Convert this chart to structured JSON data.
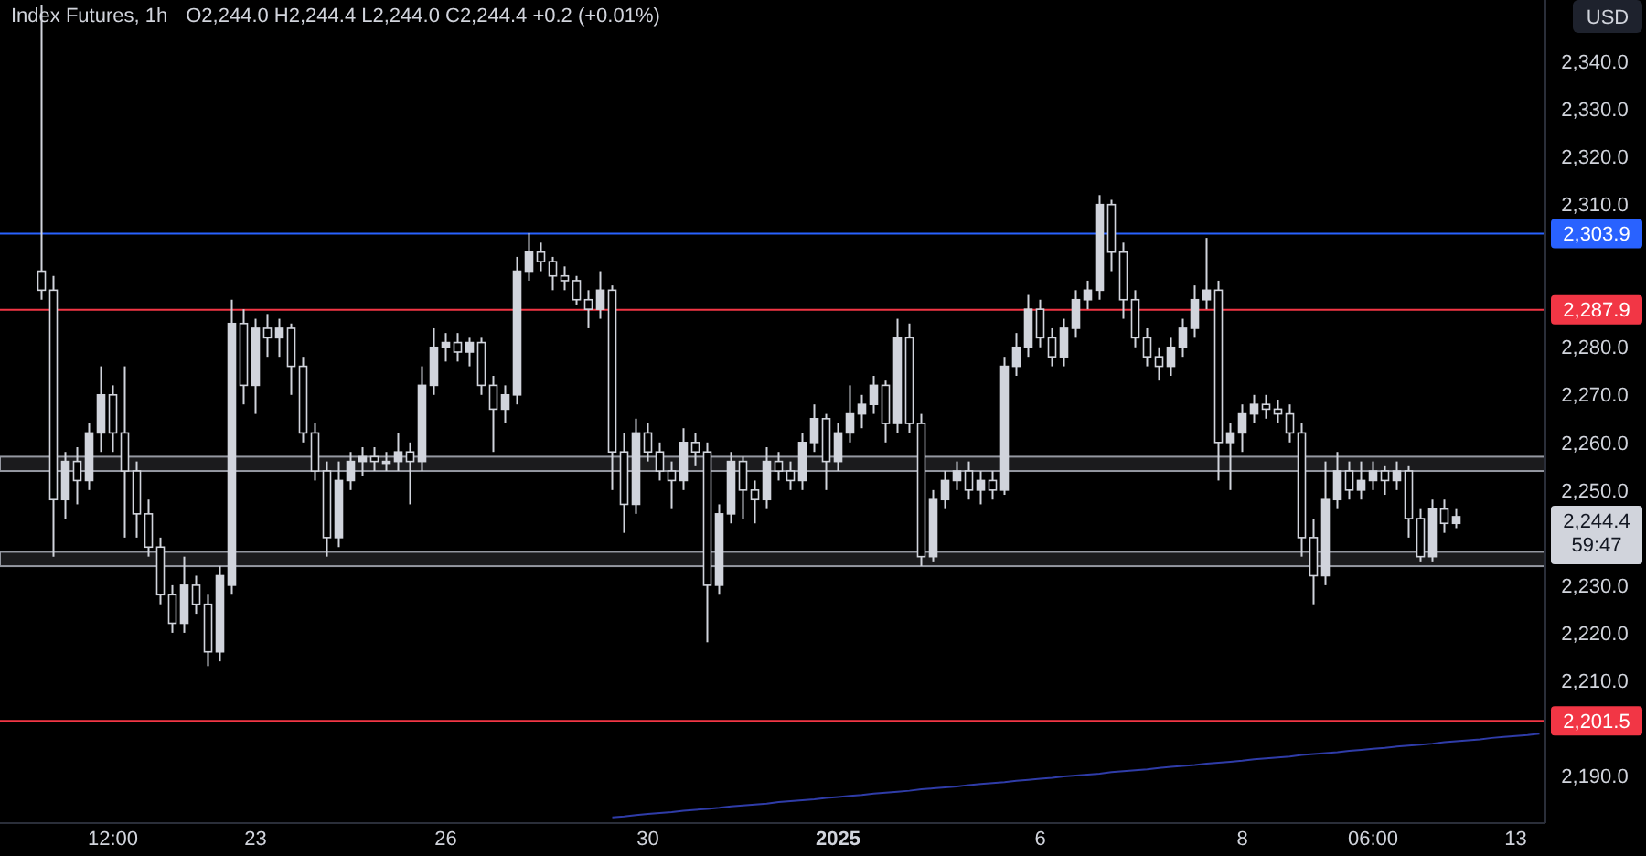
{
  "chart_data": {
    "type": "candlestick",
    "title": "Index Futures, 1h",
    "subtitle": "O2,244.0  H2,244.4  L2,244.0  C2,244.4  +0.2 (+0.01%)",
    "categories": [
      null,
      null,
      null,
      null,
      null,
      null,
      null,
      null,
      null,
      "12:00",
      null,
      null,
      null,
      null,
      null,
      null,
      null,
      null,
      null,
      null,
      null,
      "23",
      null,
      null,
      null,
      null,
      null,
      null,
      null,
      null,
      null,
      null,
      null,
      null,
      null,
      null,
      null,
      "26",
      null,
      null,
      null,
      null,
      null,
      null,
      null,
      null,
      null,
      null,
      null,
      null,
      null,
      null,
      null,
      null,
      "30",
      null,
      null,
      null,
      null,
      null,
      null,
      null,
      null,
      null,
      null,
      null,
      null,
      null,
      null,
      null,
      "2025",
      null,
      null,
      null,
      null,
      null,
      null,
      null,
      null,
      null,
      null,
      null,
      null,
      null,
      null,
      null,
      null,
      "6",
      null,
      null,
      null,
      null,
      null,
      null,
      null,
      null,
      null,
      null,
      null,
      null,
      null,
      null,
      null,
      null,
      "8",
      null,
      null,
      null,
      null,
      null,
      null,
      null,
      null,
      null,
      null,
      "06:00",
      null,
      null,
      null,
      null,
      null,
      null,
      null,
      null,
      null,
      null,
      null,
      "13",
      null,
      null
    ],
    "ylim": [
      2180,
      2353
    ],
    "yticks": [
      {
        "value": 2190,
        "label": "2,190.0"
      },
      {
        "value": 2200,
        "label": null
      },
      {
        "value": 2210,
        "label": "2,210.0"
      },
      {
        "value": 2220,
        "label": "2,220.0"
      },
      {
        "value": 2230,
        "label": "2,230.0"
      },
      {
        "value": 2240,
        "label": null
      },
      {
        "value": 2250,
        "label": "2,250.0"
      },
      {
        "value": 2260,
        "label": "2,260.0"
      },
      {
        "value": 2270,
        "label": "2,270.0"
      },
      {
        "value": 2280,
        "label": "2,280.0"
      },
      {
        "value": 2290,
        "label": null
      },
      {
        "value": 2300,
        "label": null
      },
      {
        "value": 2310,
        "label": "2,310.0"
      },
      {
        "value": 2320,
        "label": "2,320.0"
      },
      {
        "value": 2330,
        "label": "2,330.0"
      },
      {
        "value": 2340,
        "label": "2,340.0"
      }
    ],
    "series": [
      {
        "color": "#d1d4dc",
        "ohlc": [
          null,
          null,
          null,
          [
            2296,
            2352,
            2290,
            2292
          ],
          [
            2292,
            2295,
            2236,
            2248
          ],
          [
            2248,
            2258,
            2244,
            2256
          ],
          [
            2256,
            2259,
            2247,
            2252
          ],
          [
            2252,
            2264,
            2250,
            2262
          ],
          [
            2262,
            2276,
            2258,
            2270
          ],
          [
            2270,
            2272,
            2258,
            2262
          ],
          [
            2262,
            2276,
            2240,
            2254
          ],
          [
            2254,
            2256,
            2240,
            2245
          ],
          [
            2245,
            2248,
            2236,
            2238
          ],
          [
            2238,
            2240,
            2226,
            2228
          ],
          [
            2228,
            2230,
            2220,
            2222
          ],
          [
            2222,
            2236,
            2220,
            2230
          ],
          [
            2230,
            2232,
            2224,
            2226
          ],
          [
            2226,
            2228,
            2213,
            2216
          ],
          [
            2216,
            2234,
            2214,
            2232
          ],
          [
            2230,
            2290,
            2228,
            2285
          ],
          [
            2285,
            2288,
            2268,
            2272
          ],
          [
            2272,
            2286,
            2266,
            2284
          ],
          [
            2284,
            2287,
            2278,
            2282
          ],
          [
            2282,
            2286,
            2278,
            2284
          ],
          [
            2284,
            2285,
            2270,
            2276
          ],
          [
            2276,
            2278,
            2260,
            2262
          ],
          [
            2262,
            2264,
            2252,
            2254
          ],
          [
            2254,
            2256,
            2236,
            2240
          ],
          [
            2240,
            2256,
            2238,
            2252
          ],
          [
            2252,
            2258,
            2250,
            2256
          ],
          [
            2256,
            2259,
            2253,
            2257
          ],
          [
            2257,
            2259,
            2254,
            2256
          ],
          [
            2256,
            2258,
            2254,
            2256
          ],
          [
            2256,
            2262,
            2254,
            2258
          ],
          [
            2258,
            2260,
            2247,
            2256
          ],
          [
            2256,
            2276,
            2254,
            2272
          ],
          [
            2272,
            2284,
            2270,
            2280
          ],
          [
            2280,
            2283,
            2277,
            2281
          ],
          [
            2281,
            2283,
            2277,
            2279
          ],
          [
            2279,
            2282,
            2276,
            2281
          ],
          [
            2281,
            2282,
            2270,
            2272
          ],
          [
            2272,
            2274,
            2258,
            2267
          ],
          [
            2267,
            2272,
            2264,
            2270
          ],
          [
            2270,
            2299,
            2268,
            2296
          ],
          [
            2296,
            2304,
            2294,
            2300
          ],
          [
            2300,
            2302,
            2296,
            2298
          ],
          [
            2298,
            2299,
            2292,
            2295
          ],
          [
            2295,
            2297,
            2292,
            2294
          ],
          [
            2294,
            2295,
            2289,
            2290
          ],
          [
            2290,
            2292,
            2284,
            2288
          ],
          [
            2288,
            2296,
            2286,
            2292
          ],
          [
            2292,
            2293,
            2250,
            2258
          ],
          [
            2258,
            2262,
            2241,
            2247
          ],
          [
            2247,
            2265,
            2245,
            2262
          ],
          [
            2262,
            2264,
            2256,
            2258
          ],
          [
            2258,
            2260,
            2252,
            2254
          ],
          [
            2254,
            2256,
            2246,
            2252
          ],
          [
            2252,
            2263,
            2250,
            2260
          ],
          [
            2260,
            2262,
            2255,
            2258
          ],
          [
            2258,
            2260,
            2218,
            2230
          ],
          [
            2230,
            2247,
            2228,
            2245
          ],
          [
            2245,
            2258,
            2243,
            2256
          ],
          [
            2256,
            2257,
            2244,
            2250
          ],
          [
            2250,
            2252,
            2243,
            2248
          ],
          [
            2248,
            2259,
            2246,
            2256
          ],
          [
            2256,
            2258,
            2252,
            2254
          ],
          [
            2254,
            2256,
            2250,
            2252
          ],
          [
            2252,
            2262,
            2250,
            2260
          ],
          [
            2260,
            2268,
            2258,
            2265
          ],
          [
            2265,
            2266,
            2250,
            2256
          ],
          [
            2256,
            2264,
            2254,
            2262
          ],
          [
            2262,
            2272,
            2260,
            2266
          ],
          [
            2266,
            2270,
            2263,
            2268
          ],
          [
            2268,
            2274,
            2266,
            2272
          ],
          [
            2272,
            2273,
            2260,
            2264
          ],
          [
            2264,
            2286,
            2262,
            2282
          ],
          [
            2282,
            2285,
            2262,
            2264
          ],
          [
            2264,
            2266,
            2234,
            2236
          ],
          [
            2236,
            2250,
            2235,
            2248
          ],
          [
            2248,
            2254,
            2246,
            2252
          ],
          [
            2252,
            2256,
            2250,
            2254
          ],
          [
            2254,
            2256,
            2248,
            2250
          ],
          [
            2250,
            2254,
            2247,
            2252
          ],
          [
            2252,
            2254,
            2248,
            2250
          ],
          [
            2250,
            2278,
            2249,
            2276
          ],
          [
            2276,
            2283,
            2274,
            2280
          ],
          [
            2280,
            2291,
            2278,
            2288
          ],
          [
            2288,
            2290,
            2280,
            2282
          ],
          [
            2282,
            2284,
            2276,
            2278
          ],
          [
            2278,
            2286,
            2276,
            2284
          ],
          [
            2284,
            2292,
            2282,
            2290
          ],
          [
            2290,
            2294,
            2288,
            2292
          ],
          [
            2292,
            2312,
            2290,
            2310
          ],
          [
            2310,
            2311,
            2296,
            2300
          ],
          [
            2300,
            2302,
            2286,
            2290
          ],
          [
            2290,
            2292,
            2280,
            2282
          ],
          [
            2282,
            2284,
            2276,
            2278
          ],
          [
            2278,
            2280,
            2273,
            2276
          ],
          [
            2276,
            2282,
            2274,
            2280
          ],
          [
            2280,
            2286,
            2278,
            2284
          ],
          [
            2284,
            2293,
            2282,
            2290
          ],
          [
            2290,
            2303,
            2288,
            2292
          ],
          [
            2292,
            2294,
            2252,
            2260
          ],
          [
            2260,
            2264,
            2250,
            2262
          ],
          [
            2262,
            2268,
            2258,
            2266
          ],
          [
            2266,
            2270,
            2264,
            2268
          ],
          [
            2268,
            2270,
            2265,
            2267
          ],
          [
            2267,
            2269,
            2264,
            2266
          ],
          [
            2266,
            2268,
            2260,
            2262
          ],
          [
            2262,
            2264,
            2236,
            2240
          ],
          [
            2240,
            2244,
            2226,
            2232
          ],
          [
            2232,
            2256,
            2230,
            2248
          ],
          [
            2248,
            2258,
            2246,
            2254
          ],
          [
            2254,
            2256,
            2248,
            2250
          ],
          [
            2250,
            2256,
            2248,
            2252
          ],
          [
            2252,
            2256,
            2250,
            2254
          ],
          [
            2254,
            2255,
            2249,
            2252
          ],
          [
            2252,
            2256,
            2250,
            2254
          ],
          [
            2254,
            2255,
            2240,
            2244
          ],
          [
            2244,
            2246,
            2235,
            2236
          ],
          [
            2236,
            2248,
            2235,
            2246
          ],
          [
            2246,
            2248,
            2241,
            2243
          ],
          [
            2243,
            2246,
            2242,
            2244.4
          ],
          null,
          null,
          null,
          null,
          null,
          null,
          null
        ]
      },
      {
        "type": "line",
        "color": "#2f3ca8",
        "values": [
          null,
          null,
          null,
          null,
          null,
          null,
          null,
          null,
          null,
          null,
          null,
          null,
          null,
          null,
          null,
          null,
          null,
          null,
          null,
          null,
          null,
          null,
          null,
          null,
          null,
          null,
          null,
          null,
          null,
          null,
          null,
          null,
          null,
          null,
          null,
          null,
          null,
          null,
          null,
          null,
          null,
          null,
          null,
          null,
          null,
          null,
          null,
          null,
          null,
          null,
          null,
          2181.2,
          2181.4,
          2181.7,
          2181.9,
          2182.1,
          2182.3,
          2182.6,
          2182.8,
          2183.0,
          2183.2,
          2183.5,
          2183.7,
          2183.9,
          2184.1,
          2184.4,
          2184.6,
          2184.8,
          2185.0,
          2185.3,
          2185.5,
          2185.7,
          2185.9,
          2186.2,
          2186.4,
          2186.6,
          2186.8,
          2187.1,
          2187.3,
          2187.5,
          2187.7,
          2188.0,
          2188.2,
          2188.4,
          2188.6,
          2188.9,
          2189.1,
          2189.3,
          2189.5,
          2189.8,
          2190.0,
          2190.2,
          2190.4,
          2190.7,
          2190.9,
          2191.1,
          2191.3,
          2191.6,
          2191.8,
          2192.0,
          2192.2,
          2192.5,
          2192.7,
          2192.9,
          2193.1,
          2193.4,
          2193.6,
          2193.8,
          2194.0,
          2194.3,
          2194.5,
          2194.7,
          2194.9,
          2195.2,
          2195.4,
          2195.6,
          2195.8,
          2196.1,
          2196.3,
          2196.5,
          2196.7,
          2197.0,
          2197.2,
          2197.4,
          2197.6,
          2197.9,
          2198.1,
          2198.3,
          2198.5,
          2198.8
        ]
      }
    ],
    "ref_lines": [
      {
        "axis": "y",
        "value": 2303.9,
        "label": "2,303.9",
        "color": "#2962ff"
      },
      {
        "axis": "y",
        "value": 2287.9,
        "label": "2,287.9",
        "color": "#f23645"
      },
      {
        "axis": "y",
        "value": 2201.5,
        "label": "2,201.5",
        "color": "#f23645"
      }
    ],
    "bands": [
      {
        "axis": "y",
        "from": 2234,
        "to": 2237,
        "color": "#9598a1"
      },
      {
        "axis": "y",
        "from": 2254,
        "to": 2257,
        "color": "#9598a1"
      }
    ],
    "annotations": [
      "USD",
      "2,244.4",
      "59:47"
    ]
  }
}
